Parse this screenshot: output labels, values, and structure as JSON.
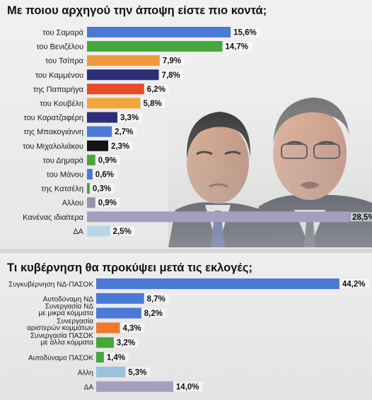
{
  "chart_data": [
    {
      "type": "bar",
      "orientation": "horizontal",
      "title": "Με ποιου αρχηγού την άποψη είστε πιο κοντά;",
      "categories": [
        "του Σαμαρά",
        "του Βενιζέλου",
        "του Τσίπρα",
        "του Καμμένου",
        "της Παπαρήγα",
        "του Κουβέλη",
        "του Καρατζαφέρη",
        "της Μπακογιάννη",
        "του Μιχαλολιάκου",
        "του Δημαρά",
        "του Μάνου",
        "της Κατσέλη",
        "Αλλου",
        "Κανένας ιδιαίτερα",
        "ΔΑ"
      ],
      "values": [
        15.6,
        14.7,
        7.9,
        7.8,
        6.2,
        5.8,
        3.3,
        2.7,
        2.3,
        0.9,
        0.6,
        0.3,
        0.9,
        28.5,
        2.5
      ],
      "value_labels": [
        "15,6%",
        "14,7%",
        "7,9%",
        "7,8%",
        "6,2%",
        "5,8%",
        "3,3%",
        "2,7%",
        "2,3%",
        "0,9%",
        "0,6%",
        "0,3%",
        "0,9%",
        "28,5%",
        "2,5%"
      ],
      "colors": [
        "#4a79d6",
        "#44a83b",
        "#ef9a3c",
        "#2e2d78",
        "#e84b26",
        "#f2a73b",
        "#2e2d78",
        "#4a79d6",
        "#141414",
        "#44a83b",
        "#4a79d6",
        "#44a83b",
        "#9b92b3",
        "#a79ebf",
        "#b9d7e4"
      ],
      "grid": false,
      "legend": "none"
    },
    {
      "type": "bar",
      "orientation": "horizontal",
      "title": "Τι κυβέρνηση θα προκύψει μετά τις εκλογές;",
      "categories": [
        [
          "Συγκυβέρνηση ΝΔ-ΠΑΣΟΚ"
        ],
        [
          "Αυτοδύναμη ΝΔ"
        ],
        [
          "Συνεργασία ΝΔ",
          "με μικρά κόμματα"
        ],
        [
          "Συνεργασία",
          "αριστερών κομμάτων"
        ],
        [
          "Συνεργασία ΠΑΣΟΚ",
          "με άλλα κόμματα"
        ],
        [
          "Αυτοδύναμο ΠΑΣΟΚ"
        ],
        [
          "Αλλη"
        ],
        [
          "ΔΑ"
        ]
      ],
      "values": [
        44.2,
        8.7,
        8.2,
        4.3,
        3.2,
        1.4,
        5.3,
        14.0
      ],
      "value_labels": [
        "44,2%",
        "8,7%",
        "8,2%",
        "4,3%",
        "3,2%",
        "1,4%",
        "5,3%",
        "14,0%"
      ],
      "colors": [
        "#4a79d6",
        "#4a79d6",
        "#4a79d6",
        "#ef7a2c",
        "#44a83b",
        "#44a83b",
        "#9bc2dc",
        "#a79ebf"
      ],
      "grid": false,
      "legend": "none"
    }
  ]
}
